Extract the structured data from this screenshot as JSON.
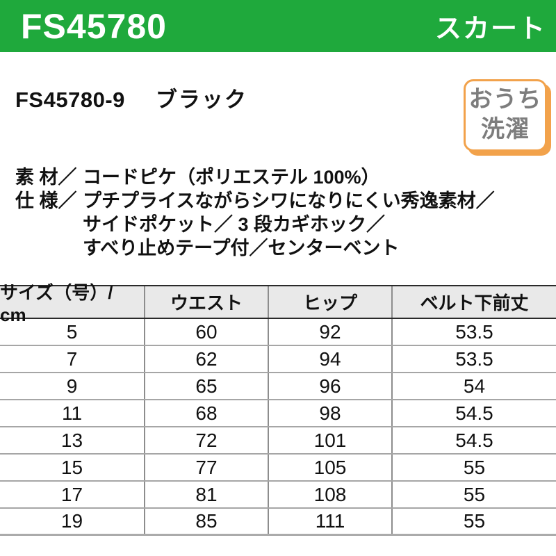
{
  "header": {
    "product_code": "FS45780",
    "category": "スカート",
    "bg_color": "#1fa93c",
    "text_color": "#ffffff"
  },
  "product": {
    "variant_code": "FS45780-9",
    "color_name": "ブラック"
  },
  "wash_badge": {
    "line1": "おうち",
    "line2": "洗濯",
    "border_color": "#f2a24b",
    "text_color": "#7d7d7d"
  },
  "specs": {
    "material_label": "素 材／",
    "material_value": "コードピケ（ポリエステル 100%）",
    "spec_label": "仕 様／",
    "spec_line1": "プチプライスながらシワになりにくい秀逸素材／",
    "spec_line2": "サイドポケット／ 3 段カギホック／",
    "spec_line3": "すべり止めテープ付／センターベント"
  },
  "size_table": {
    "columns": [
      "サイズ（号）/ cm",
      "ウエスト",
      "ヒップ",
      "ベルト下前丈"
    ],
    "rows": [
      [
        "5",
        "60",
        "92",
        "53.5"
      ],
      [
        "7",
        "62",
        "94",
        "53.5"
      ],
      [
        "9",
        "65",
        "96",
        "54"
      ],
      [
        "11",
        "68",
        "98",
        "54.5"
      ],
      [
        "13",
        "72",
        "101",
        "54.5"
      ],
      [
        "15",
        "77",
        "105",
        "55"
      ],
      [
        "17",
        "81",
        "108",
        "55"
      ],
      [
        "19",
        "85",
        "111",
        "55"
      ]
    ],
    "header_bg": "#e9e9e9",
    "dark_line": "#2a2a2a",
    "gray_line": "#a6a6a6"
  }
}
